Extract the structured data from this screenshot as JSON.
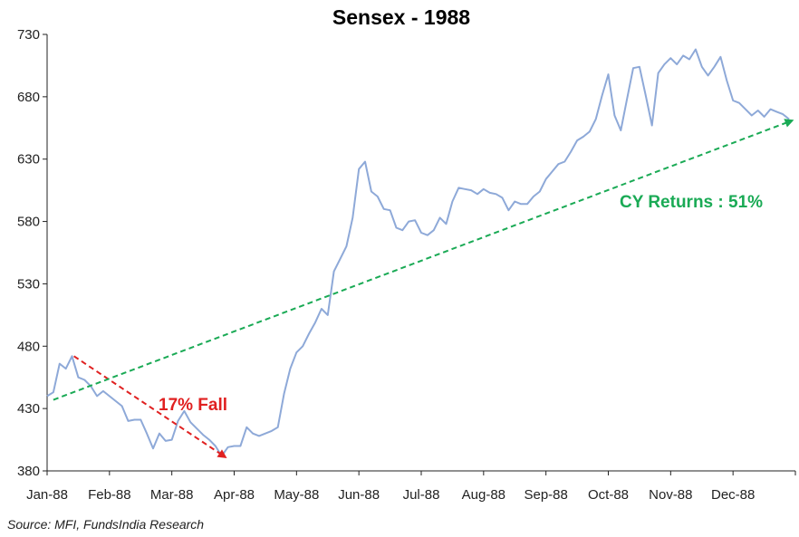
{
  "chart_data": {
    "type": "line",
    "title": "Sensex - 1988",
    "xlabel": "",
    "ylabel": "",
    "ylim": [
      380,
      730
    ],
    "yticks": [
      380,
      430,
      480,
      530,
      580,
      630,
      680,
      730
    ],
    "x_tick_labels": [
      "Jan-88",
      "Feb-88",
      "Mar-88",
      "Apr-88",
      "May-88",
      "Jun-88",
      "Jul-88",
      "Aug-88",
      "Sep-88",
      "Oct-88",
      "Nov-88",
      "Dec-88"
    ],
    "grid": false,
    "colors": {
      "series": "#8ea9d8",
      "fall": "#e02020",
      "trend": "#1aaa55"
    },
    "series": [
      {
        "x": [
          0.0,
          0.1,
          0.2,
          0.3,
          0.4,
          0.5,
          0.6,
          0.7,
          0.8,
          0.9,
          1.0,
          1.1,
          1.2,
          1.3,
          1.4,
          1.5,
          1.6,
          1.7,
          1.8,
          1.9,
          2.0,
          2.1,
          2.2,
          2.3,
          2.4,
          2.5,
          2.6,
          2.7,
          2.8,
          2.9,
          3.0,
          3.1,
          3.2,
          3.3,
          3.4,
          3.5,
          3.6,
          3.7,
          3.8,
          3.9,
          4.0,
          4.1,
          4.2,
          4.3,
          4.4,
          4.5,
          4.6,
          4.7,
          4.8,
          4.9,
          5.0,
          5.1,
          5.2,
          5.3,
          5.4,
          5.5,
          5.6,
          5.7,
          5.8,
          5.9,
          6.0,
          6.1,
          6.2,
          6.3,
          6.4,
          6.5,
          6.6,
          6.7,
          6.8,
          6.9,
          7.0,
          7.1,
          7.2,
          7.3,
          7.4,
          7.5,
          7.6,
          7.7,
          7.8,
          7.9,
          8.0,
          8.1,
          8.2,
          8.3,
          8.4,
          8.5,
          8.6,
          8.7,
          8.8,
          8.9,
          9.0,
          9.1,
          9.2,
          9.3,
          9.4,
          9.5,
          9.6,
          9.7,
          9.8,
          9.9,
          10.0,
          10.1,
          10.2,
          10.3,
          10.4,
          10.5,
          10.6,
          10.7,
          10.8,
          10.9,
          11.0,
          11.1,
          11.2,
          11.3,
          11.4,
          11.5,
          11.6,
          11.7,
          11.8,
          11.9
        ],
        "values": [
          440,
          443,
          466,
          462,
          472,
          455,
          453,
          448,
          440,
          444,
          440,
          436,
          432,
          420,
          421,
          421,
          410,
          398,
          410,
          404,
          405,
          420,
          428,
          419,
          414,
          409,
          405,
          400,
          392,
          399,
          400,
          400,
          415,
          410,
          408,
          410,
          412,
          415,
          442,
          462,
          475,
          480,
          490,
          499,
          510,
          505,
          540,
          550,
          560,
          583,
          622,
          628,
          604,
          600,
          590,
          589,
          575,
          573,
          580,
          581,
          571,
          569,
          573,
          583,
          578,
          596,
          607,
          606,
          605,
          602,
          606,
          603,
          602,
          599,
          589,
          596,
          594,
          594,
          600,
          604,
          614,
          620,
          626,
          628,
          636,
          645,
          648,
          652,
          662,
          681,
          698,
          665,
          653,
          678,
          703,
          704,
          681,
          657,
          699,
          706,
          711,
          706,
          713,
          710,
          718,
          704,
          697,
          704,
          712,
          693,
          677,
          675,
          670,
          665,
          669,
          664,
          670,
          668,
          666,
          662
        ]
      }
    ],
    "annotations": [
      {
        "text": "17% Fall",
        "color": "#e02020",
        "from": [
          0.43,
          472
        ],
        "to": [
          2.86,
          391
        ]
      },
      {
        "text": "CY Returns : 51%",
        "color": "#1aaa55",
        "from": [
          0.1,
          437
        ],
        "to": [
          11.95,
          661
        ]
      }
    ],
    "source": "Source: MFI, FundsIndia Research"
  }
}
